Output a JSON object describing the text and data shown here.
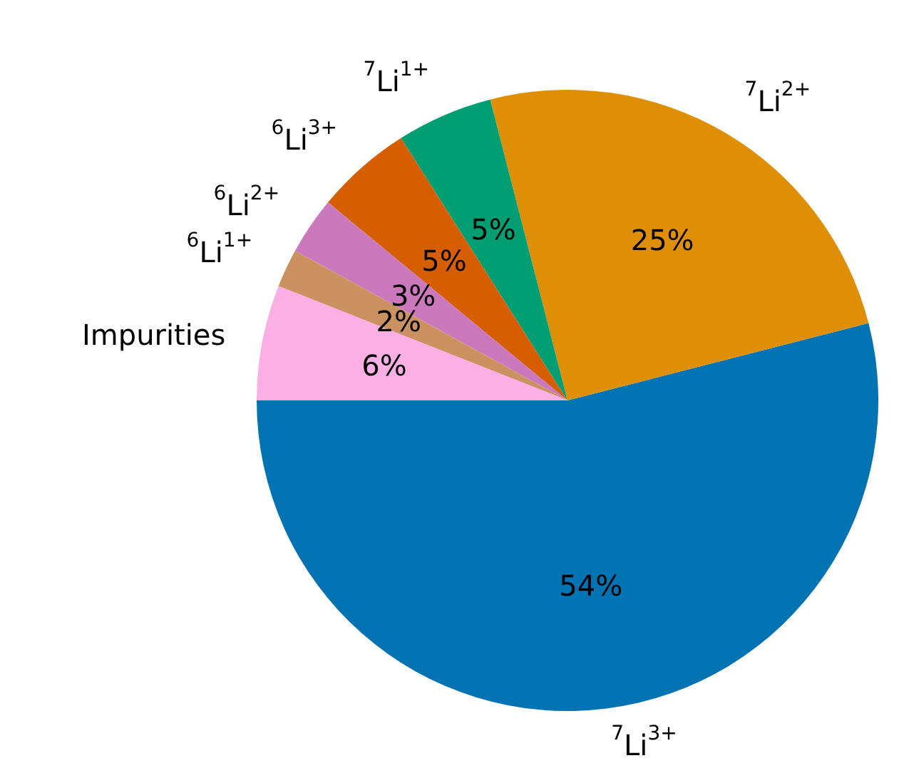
{
  "chart_data": {
    "type": "pie",
    "categories": [
      "$^{7}$Li$^{3+}$",
      "$^{7}$Li$^{2+}$",
      "$^{7}$Li$^{1+}$",
      "$^{6}$Li$^{3+}$",
      "$^{6}$Li$^{2+}$",
      "$^{6}$Li$^{1+}$",
      "Impurities"
    ],
    "values": [
      54,
      25,
      5,
      5,
      3,
      2,
      6
    ],
    "value_labels": [
      "54%",
      "25%",
      "5%",
      "5%",
      "3%",
      "2%",
      "6%"
    ],
    "colors": [
      "#0173b2",
      "#de8f05",
      "#029e73",
      "#d55e00",
      "#cc78bc",
      "#ca9161",
      "#fbafe4"
    ],
    "legend": false
  }
}
